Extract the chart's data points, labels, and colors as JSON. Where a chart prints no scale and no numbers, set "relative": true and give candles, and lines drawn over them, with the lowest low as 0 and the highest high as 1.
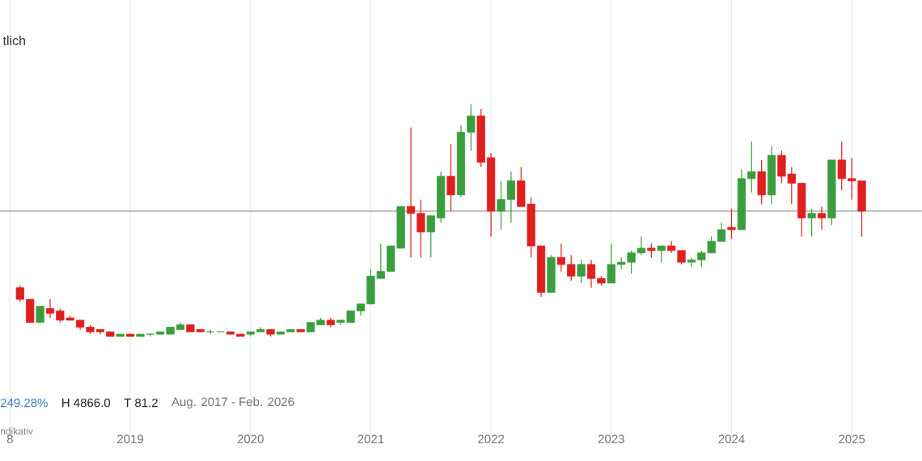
{
  "chart_data": {
    "type": "candlestick",
    "title": "tlich",
    "relative": true,
    "grid": "x",
    "xlim": [
      "2017-12",
      "2025-08"
    ],
    "xticks": [
      {
        "value": "2018-01",
        "label": "8"
      },
      {
        "value": "2019-01",
        "label": "2019"
      },
      {
        "value": "2020-01",
        "label": "2020"
      },
      {
        "value": "2021-01",
        "label": "2021"
      },
      {
        "value": "2022-01",
        "label": "2022"
      },
      {
        "value": "2023-01",
        "label": "2023"
      },
      {
        "value": "2024-01",
        "label": "2024"
      },
      {
        "value": "2025-01",
        "label": "2025"
      }
    ],
    "x": [
      "2018-02",
      "2018-03",
      "2018-04",
      "2018-05",
      "2018-06",
      "2018-07",
      "2018-08",
      "2018-09",
      "2018-10",
      "2018-11",
      "2018-12",
      "2019-01",
      "2019-02",
      "2019-03",
      "2019-04",
      "2019-05",
      "2019-06",
      "2019-07",
      "2019-08",
      "2019-09",
      "2019-10",
      "2019-11",
      "2019-12",
      "2020-01",
      "2020-02",
      "2020-03",
      "2020-04",
      "2020-05",
      "2020-06",
      "2020-07",
      "2020-08",
      "2020-09",
      "2020-10",
      "2020-11",
      "2020-12",
      "2021-01",
      "2021-02",
      "2021-03",
      "2021-04",
      "2021-05",
      "2021-06",
      "2021-07",
      "2021-08",
      "2021-09",
      "2021-10",
      "2021-11",
      "2021-12",
      "2022-01",
      "2022-02",
      "2022-03",
      "2022-04",
      "2022-05",
      "2022-06",
      "2022-07",
      "2022-08",
      "2022-09",
      "2022-10",
      "2022-11",
      "2022-12",
      "2023-01",
      "2023-02",
      "2023-03",
      "2023-04",
      "2023-05",
      "2023-06",
      "2023-07",
      "2023-08",
      "2023-09",
      "2023-10",
      "2023-11",
      "2023-12",
      "2024-01",
      "2024-02",
      "2024-03",
      "2024-04",
      "2024-05",
      "2024-06",
      "2024-07",
      "2024-08",
      "2024-09",
      "2024-10",
      "2024-11",
      "2024-12",
      "2025-01",
      "2025-02"
    ],
    "ohlc": [
      [
        0.21,
        0.22,
        0.15,
        0.16
      ],
      [
        0.16,
        0.16,
        0.06,
        0.06
      ],
      [
        0.06,
        0.13,
        0.06,
        0.13
      ],
      [
        0.12,
        0.16,
        0.08,
        0.1
      ],
      [
        0.11,
        0.12,
        0.06,
        0.07
      ],
      [
        0.08,
        0.09,
        0.07,
        0.07
      ],
      [
        0.07,
        0.07,
        0.03,
        0.04
      ],
      [
        0.04,
        0.05,
        0.01,
        0.02
      ],
      [
        0.03,
        0.03,
        0.01,
        0.02
      ],
      [
        0.02,
        0.02,
        0,
        0
      ],
      [
        0,
        0.01,
        0,
        0.01
      ],
      [
        0.01,
        0.01,
        0,
        0
      ],
      [
        0,
        0.01,
        0,
        0.01
      ],
      [
        0.01,
        0.01,
        0,
        0.01
      ],
      [
        0.01,
        0.02,
        0.01,
        0.02
      ],
      [
        0.01,
        0.04,
        0.01,
        0.04
      ],
      [
        0.03,
        0.06,
        0.03,
        0.05
      ],
      [
        0.05,
        0.05,
        0.02,
        0.02
      ],
      [
        0.03,
        0.03,
        0.02,
        0.02
      ],
      [
        0.02,
        0.03,
        0.01,
        0.02
      ],
      [
        0.02,
        0.02,
        0.02,
        0.02
      ],
      [
        0.02,
        0.02,
        0.01,
        0.01
      ],
      [
        0.01,
        0.01,
        0,
        0
      ],
      [
        0.01,
        0.02,
        0,
        0.02
      ],
      [
        0.02,
        0.04,
        0.02,
        0.03
      ],
      [
        0.03,
        0.03,
        0,
        0.01
      ],
      [
        0.01,
        0.02,
        0.01,
        0.02
      ],
      [
        0.02,
        0.03,
        0.02,
        0.03
      ],
      [
        0.03,
        0.03,
        0.02,
        0.02
      ],
      [
        0.02,
        0.06,
        0.02,
        0.06
      ],
      [
        0.05,
        0.08,
        0.05,
        0.07
      ],
      [
        0.07,
        0.08,
        0.04,
        0.05
      ],
      [
        0.06,
        0.07,
        0.05,
        0.07
      ],
      [
        0.06,
        0.11,
        0.06,
        0.11
      ],
      [
        0.11,
        0.14,
        0.09,
        0.14
      ],
      [
        0.14,
        0.29,
        0.14,
        0.26
      ],
      [
        0.25,
        0.4,
        0.25,
        0.28
      ],
      [
        0.28,
        0.39,
        0.28,
        0.39
      ],
      [
        0.38,
        0.56,
        0.38,
        0.56
      ],
      [
        0.56,
        0.9,
        0.34,
        0.53
      ],
      [
        0.53,
        0.59,
        0.34,
        0.45
      ],
      [
        0.45,
        0.52,
        0.34,
        0.52
      ],
      [
        0.51,
        0.71,
        0.49,
        0.69
      ],
      [
        0.69,
        0.83,
        0.54,
        0.61
      ],
      [
        0.61,
        0.91,
        0.6,
        0.88
      ],
      [
        0.88,
        1,
        0.8,
        0.95
      ],
      [
        0.95,
        0.98,
        0.73,
        0.75
      ],
      [
        0.77,
        0.79,
        0.43,
        0.54
      ],
      [
        0.54,
        0.67,
        0.46,
        0.59
      ],
      [
        0.59,
        0.71,
        0.49,
        0.67
      ],
      [
        0.67,
        0.73,
        0.56,
        0.56
      ],
      [
        0.57,
        0.6,
        0.34,
        0.39
      ],
      [
        0.39,
        0.39,
        0.17,
        0.19
      ],
      [
        0.19,
        0.35,
        0.19,
        0.34
      ],
      [
        0.34,
        0.4,
        0.28,
        0.31
      ],
      [
        0.31,
        0.35,
        0.24,
        0.26
      ],
      [
        0.26,
        0.33,
        0.23,
        0.31
      ],
      [
        0.31,
        0.33,
        0.21,
        0.25
      ],
      [
        0.25,
        0.26,
        0.22,
        0.23
      ],
      [
        0.23,
        0.4,
        0.23,
        0.31
      ],
      [
        0.31,
        0.34,
        0.29,
        0.32
      ],
      [
        0.32,
        0.37,
        0.27,
        0.36
      ],
      [
        0.36,
        0.43,
        0.35,
        0.38
      ],
      [
        0.38,
        0.4,
        0.34,
        0.37
      ],
      [
        0.37,
        0.39,
        0.32,
        0.39
      ],
      [
        0.39,
        0.41,
        0.36,
        0.37
      ],
      [
        0.37,
        0.37,
        0.31,
        0.32
      ],
      [
        0.32,
        0.34,
        0.3,
        0.33
      ],
      [
        0.33,
        0.37,
        0.3,
        0.36
      ],
      [
        0.36,
        0.43,
        0.36,
        0.41
      ],
      [
        0.41,
        0.49,
        0.41,
        0.46
      ],
      [
        0.47,
        0.55,
        0.42,
        0.46
      ],
      [
        0.46,
        0.72,
        0.46,
        0.68
      ],
      [
        0.68,
        0.84,
        0.62,
        0.71
      ],
      [
        0.71,
        0.76,
        0.57,
        0.61
      ],
      [
        0.61,
        0.82,
        0.57,
        0.78
      ],
      [
        0.78,
        0.8,
        0.66,
        0.69
      ],
      [
        0.7,
        0.73,
        0.57,
        0.66
      ],
      [
        0.66,
        0.66,
        0.43,
        0.51
      ],
      [
        0.51,
        0.55,
        0.43,
        0.53
      ],
      [
        0.53,
        0.56,
        0.46,
        0.51
      ],
      [
        0.51,
        0.76,
        0.48,
        0.76
      ],
      [
        0.76,
        0.84,
        0.63,
        0.68
      ],
      [
        0.68,
        0.77,
        0.59,
        0.67
      ],
      [
        0.67,
        0.67,
        0.43,
        0.54
      ]
    ],
    "colors": [
      "#e0201e",
      "#e0201e",
      "#3a9e3f",
      "#e0201e",
      "#e0201e",
      "#e0201e",
      "#e0201e",
      "#e0201e",
      "#e0201e",
      "#e0201e",
      "#3a9e3f",
      "#e0201e",
      "#3a9e3f",
      "#3a9e3f",
      "#3a9e3f",
      "#3a9e3f",
      "#3a9e3f",
      "#e0201e",
      "#e0201e",
      "#3a9e3f",
      "#3a9e3f",
      "#e0201e",
      "#e0201e",
      "#3a9e3f",
      "#3a9e3f",
      "#e0201e",
      "#3a9e3f",
      "#3a9e3f",
      "#e0201e",
      "#3a9e3f",
      "#3a9e3f",
      "#e0201e",
      "#3a9e3f",
      "#3a9e3f",
      "#3a9e3f",
      "#3a9e3f",
      "#3a9e3f",
      "#3a9e3f",
      "#3a9e3f",
      "#e0201e",
      "#e0201e",
      "#3a9e3f",
      "#3a9e3f",
      "#e0201e",
      "#3a9e3f",
      "#3a9e3f",
      "#e0201e",
      "#e0201e",
      "#3a9e3f",
      "#3a9e3f",
      "#e0201e",
      "#e0201e",
      "#e0201e",
      "#3a9e3f",
      "#e0201e",
      "#e0201e",
      "#3a9e3f",
      "#e0201e",
      "#e0201e",
      "#3a9e3f",
      "#3a9e3f",
      "#3a9e3f",
      "#3a9e3f",
      "#e0201e",
      "#3a9e3f",
      "#e0201e",
      "#e0201e",
      "#3a9e3f",
      "#3a9e3f",
      "#3a9e3f",
      "#3a9e3f",
      "#e0201e",
      "#3a9e3f",
      "#3a9e3f",
      "#e0201e",
      "#3a9e3f",
      "#e0201e",
      "#e0201e",
      "#e0201e",
      "#3a9e3f",
      "#e0201e",
      "#3a9e3f",
      "#e0201e",
      "#e0201e",
      "#e0201e"
    ],
    "ref_lines": [
      {
        "axis": "y",
        "value": 0.54,
        "color": "#8a8a8a"
      }
    ],
    "annotations": [
      "249.28%",
      "H 4866.0",
      "T 81.2",
      "Aug. 2017 - Feb. 2026",
      "ndikativ"
    ]
  }
}
